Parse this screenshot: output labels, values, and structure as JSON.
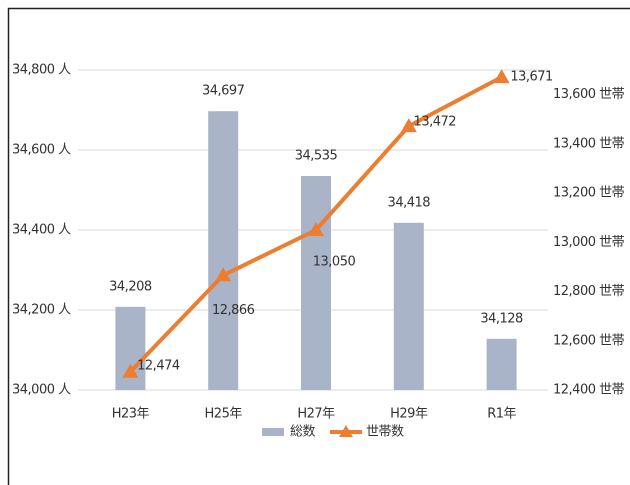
{
  "chart_data": {
    "type": "bar",
    "categories": [
      "H23年",
      "H25年",
      "H27年",
      "H29年",
      "R1年"
    ],
    "series": [
      {
        "name": "総数",
        "type": "bar",
        "color": "#a9b4c8",
        "values": [
          34208,
          34697,
          34535,
          34418,
          34128
        ],
        "value_labels": [
          "34,208",
          "34,697",
          "34,535",
          "34,418",
          "34,128"
        ]
      },
      {
        "name": "世帯数",
        "type": "line",
        "axis": "y2",
        "color": "#ed7d31",
        "values": [
          12474,
          12866,
          13050,
          13472,
          13671
        ],
        "value_labels": [
          "12,474",
          "12,866",
          "13,050",
          "13,472",
          "13,671"
        ]
      }
    ],
    "ylim": [
      34000,
      34800
    ],
    "yticks": [
      {
        "value": 34000,
        "label": "34,000 人"
      },
      {
        "value": 34200,
        "label": "34,200 人"
      },
      {
        "value": 34400,
        "label": "34,400 人"
      },
      {
        "value": 34600,
        "label": "34,600 人"
      },
      {
        "value": 34800,
        "label": "34,800 人"
      }
    ],
    "y2lim": [
      12400,
      13700
    ],
    "y2ticks": [
      {
        "value": 12400,
        "label": "12,400 世帯"
      },
      {
        "value": 12600,
        "label": "12,600 世帯"
      },
      {
        "value": 12800,
        "label": "12,800 世帯"
      },
      {
        "value": 13000,
        "label": "13,000 世帯"
      },
      {
        "value": 13200,
        "label": "13,200 世帯"
      },
      {
        "value": 13400,
        "label": "13,400 世帯"
      },
      {
        "value": 13600,
        "label": "13,600 世帯"
      }
    ],
    "grid": true,
    "legend": "bottom"
  }
}
